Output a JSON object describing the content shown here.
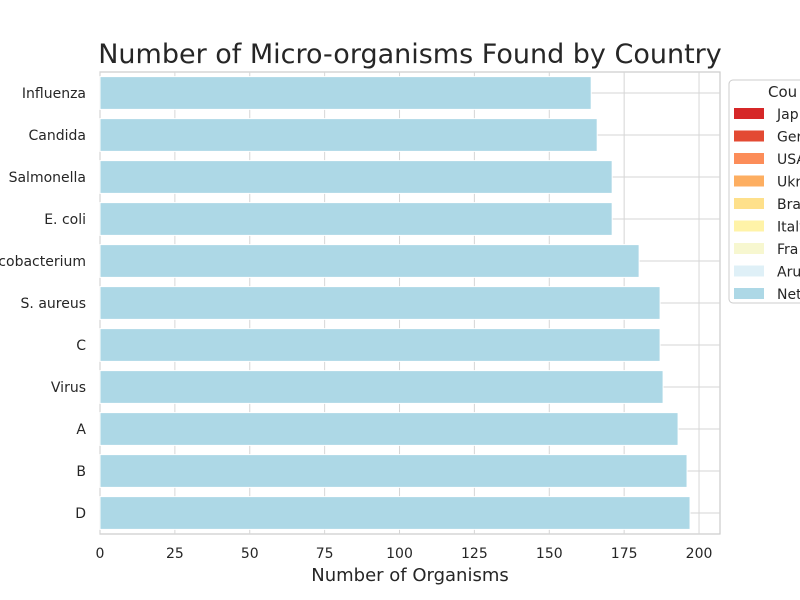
{
  "chart_data": {
    "type": "bar",
    "orientation": "horizontal",
    "title": "Number of Micro-organisms Found by Country",
    "xlabel": "Number of Organisms",
    "ylabel": "",
    "xlim": [
      0,
      207
    ],
    "xticks": [
      0,
      25,
      50,
      75,
      100,
      125,
      150,
      175,
      200
    ],
    "grid": true,
    "categories": [
      "Influenza",
      "Candida",
      "Salmonella",
      "E. coli",
      "Mycobacterium",
      "S. aureus",
      "C",
      "Virus",
      "A",
      "B",
      "D"
    ],
    "values": [
      164,
      166,
      171,
      171,
      180,
      187,
      187,
      188,
      193,
      196,
      197
    ],
    "bar_color": "#add8e6",
    "legend": {
      "position": "right, clipped at figure edge",
      "title": "Cou",
      "entries": [
        {
          "label": "Jap",
          "color": "#d62728"
        },
        {
          "label": "Ger",
          "color": "#e34a33"
        },
        {
          "label": "USA",
          "color": "#fc8d59"
        },
        {
          "label": "Ukr",
          "color": "#fdae61"
        },
        {
          "label": "Bra",
          "color": "#fee08b"
        },
        {
          "label": "Italy",
          "color": "#fff3a8"
        },
        {
          "label": "Fra",
          "color": "#f7f7d0"
        },
        {
          "label": "Aru",
          "color": "#dff0f7"
        },
        {
          "label": "Net",
          "color": "#add8e6"
        }
      ]
    }
  }
}
